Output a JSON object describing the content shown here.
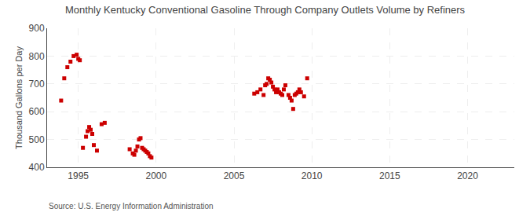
{
  "chart_data": {
    "type": "scatter",
    "title": "Monthly Kentucky Conventional Gasoline Through Company Outlets Volume by Refiners",
    "ylabel": "Thousand Gallons per Day",
    "annotations": [
      "Source: U.S. Energy Information Administration"
    ],
    "color": "#cc0000",
    "marker": "square",
    "grid": true,
    "xlim": [
      1993.0,
      2023.0
    ],
    "ylim": [
      400,
      900
    ],
    "xticks": [
      1995,
      2000,
      2005,
      2010,
      2015,
      2020
    ],
    "yticks": [
      400,
      500,
      600,
      700,
      800,
      900
    ],
    "x": [
      1993.9,
      1994.1,
      1994.3,
      1994.5,
      1994.7,
      1994.9,
      1995.0,
      1995.1,
      1995.3,
      1995.5,
      1995.6,
      1995.7,
      1995.8,
      1995.9,
      1996.0,
      1996.2,
      1996.5,
      1996.7,
      1998.3,
      1998.5,
      1998.6,
      1998.7,
      1998.8,
      1998.9,
      1999.0,
      1999.1,
      1999.2,
      1999.3,
      1999.4,
      1999.5,
      1999.6,
      1999.7,
      2006.3,
      2006.5,
      2006.7,
      2006.9,
      2007.0,
      2007.1,
      2007.2,
      2007.3,
      2007.4,
      2007.5,
      2007.6,
      2007.7,
      2007.8,
      2007.9,
      2008.0,
      2008.1,
      2008.2,
      2008.3,
      2008.5,
      2008.6,
      2008.7,
      2008.8,
      2008.9,
      2009.0,
      2009.1,
      2009.2,
      2009.3,
      2009.5,
      2009.7
    ],
    "values": [
      640,
      720,
      760,
      780,
      800,
      805,
      790,
      785,
      470,
      510,
      530,
      545,
      535,
      520,
      480,
      460,
      555,
      560,
      465,
      450,
      445,
      460,
      475,
      500,
      505,
      470,
      465,
      460,
      455,
      450,
      440,
      435,
      665,
      670,
      680,
      660,
      695,
      700,
      720,
      715,
      705,
      690,
      680,
      670,
      680,
      670,
      665,
      660,
      680,
      695,
      660,
      650,
      640,
      610,
      660,
      665,
      670,
      680,
      670,
      655,
      720
    ]
  }
}
